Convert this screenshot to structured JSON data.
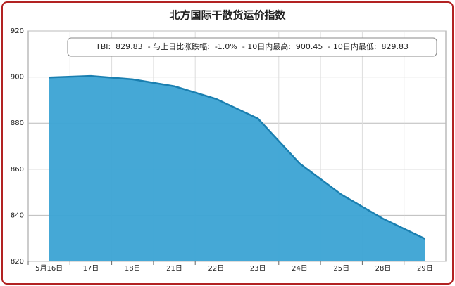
{
  "chart_data": {
    "type": "area",
    "title": "北方国际干散货运价指数",
    "annotation": "TBI:  829.83  - 与上日比涨跌幅:  -1.0%  - 10日内最高:  900.45  - 10日内最低:  829.83",
    "categories": [
      "5月16日",
      "17日",
      "18日",
      "21日",
      "22日",
      "23日",
      "24日",
      "25日",
      "28日",
      "29日"
    ],
    "values": [
      899.8,
      900.45,
      899,
      896,
      890.5,
      882,
      862.5,
      849,
      838.5,
      829.83
    ],
    "color": "#3ba3d4",
    "line_color": "#1a7fb0",
    "ylim": [
      820,
      920
    ],
    "yticks": [
      820,
      840,
      860,
      880,
      900,
      920
    ],
    "grid": true
  }
}
